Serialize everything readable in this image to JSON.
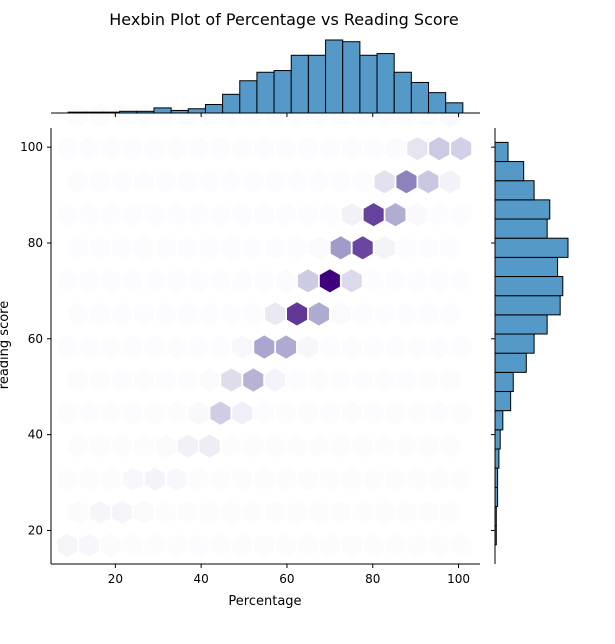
{
  "chart_data": {
    "type": "hexbin",
    "title": "Hexbin Plot of Percentage vs Reading Score",
    "xlabel": "Percentage",
    "ylabel": "reading score",
    "xlim": [
      5,
      105
    ],
    "ylim": [
      13,
      104
    ],
    "x_ticks": [
      20,
      40,
      60,
      80,
      100
    ],
    "y_ticks": [
      20,
      40,
      60,
      80,
      100
    ],
    "colormap": "Purples",
    "hex_color_low": "#fcfbfd",
    "hex_color_high": "#3f007d",
    "histogram_color": "#5499c7",
    "hexbin": {
      "ridge": [
        {
          "x": 10,
          "y": 17
        },
        {
          "x": 20,
          "y": 24
        },
        {
          "x": 30,
          "y": 31
        },
        {
          "x": 40,
          "y": 40
        },
        {
          "x": 50,
          "y": 51
        },
        {
          "x": 60,
          "y": 62
        },
        {
          "x": 70,
          "y": 72
        },
        {
          "x": 80,
          "y": 84
        },
        {
          "x": 90,
          "y": 94
        },
        {
          "x": 100,
          "y": 100
        }
      ],
      "peak": {
        "x": 72,
        "y": 76
      }
    },
    "x_histogram": {
      "bin_edges": [
        5,
        9,
        13,
        17,
        21,
        25,
        29,
        33,
        37,
        41,
        45,
        49,
        53,
        57,
        61,
        65,
        69,
        73,
        77,
        81,
        85,
        89,
        93,
        97,
        101
      ],
      "counts": [
        0,
        1,
        1,
        1,
        2,
        2,
        6,
        3,
        5,
        10,
        22,
        38,
        48,
        50,
        68,
        68,
        86,
        84,
        68,
        70,
        48,
        36,
        24,
        12,
        15
      ]
    },
    "y_histogram": {
      "bin_edges": [
        13,
        17,
        21,
        25,
        29,
        33,
        37,
        41,
        45,
        49,
        53,
        57,
        61,
        65,
        69,
        73,
        77,
        81,
        85,
        89,
        93,
        97,
        101
      ],
      "counts": [
        0,
        1,
        1,
        2,
        2,
        3,
        4,
        6,
        12,
        14,
        24,
        30,
        40,
        50,
        52,
        48,
        56,
        40,
        42,
        30,
        22,
        10,
        12
      ]
    }
  }
}
